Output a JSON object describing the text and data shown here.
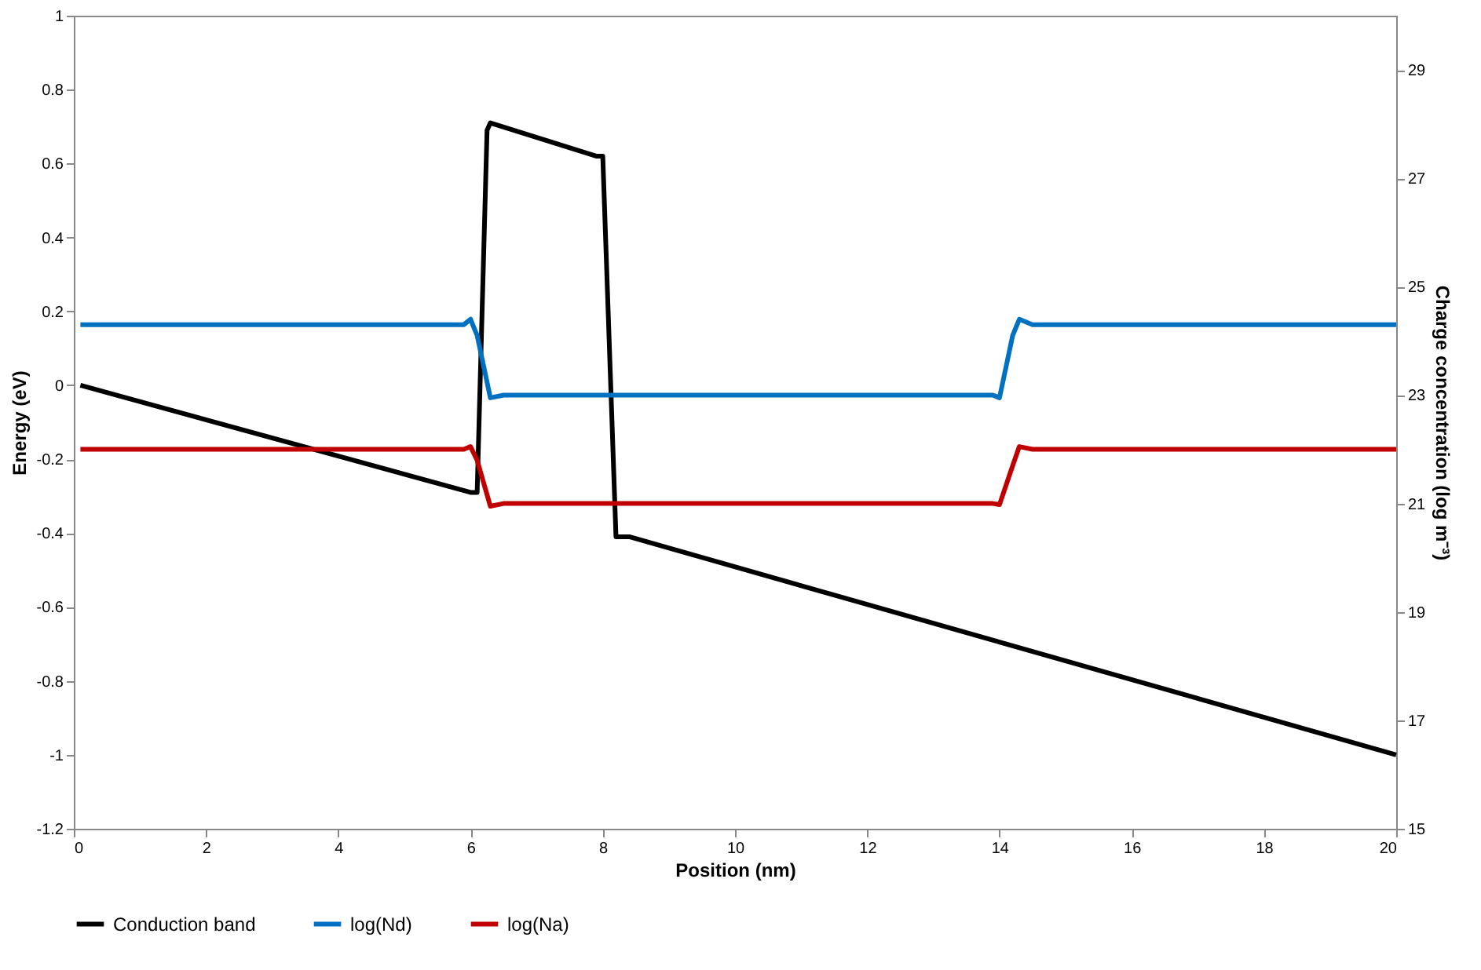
{
  "chart_data": {
    "type": "line",
    "xlabel": "Position (nm)",
    "ylabel": "Energy (eV)",
    "y2label": "Charge concentration (log m⁻³)",
    "xlim": [
      0,
      20
    ],
    "xticks": [
      0,
      2,
      4,
      6,
      8,
      10,
      12,
      14,
      16,
      18,
      20
    ],
    "ylim": [
      -1.2,
      1
    ],
    "yticks": [
      -1.2,
      -1,
      -0.8,
      -0.6,
      -0.4,
      -0.2,
      0,
      0.2,
      0.4,
      0.6,
      0.8,
      1
    ],
    "y2lim": [
      15,
      30
    ],
    "y2ticks": [
      15,
      17,
      19,
      21,
      23,
      25,
      27,
      29
    ],
    "legend": "bottom",
    "grid": false,
    "line_style": "solid",
    "marker": "none",
    "series": [
      {
        "name": "Conduction band",
        "color": "#000000",
        "x": [
          0.1,
          6.0,
          6.1,
          6.25,
          6.3,
          7.9,
          8.0,
          8.2,
          8.4,
          20
        ],
        "values": [
          0.0,
          -0.29,
          -0.29,
          0.69,
          0.71,
          0.62,
          0.62,
          -0.41,
          -0.41,
          -1.0
        ]
      },
      {
        "name": "log(Nd)",
        "color": "#0070c0",
        "axis": "y2",
        "x": [
          0.1,
          5.9,
          6.0,
          6.1,
          6.3,
          6.5,
          13.9,
          14.0,
          14.2,
          14.3,
          14.5,
          20
        ],
        "values": [
          24.3,
          24.3,
          24.4,
          24.1,
          22.95,
          23.0,
          23.0,
          22.95,
          24.1,
          24.4,
          24.3,
          24.3
        ]
      },
      {
        "name": "log(Na)",
        "color": "#c00000",
        "axis": "y2",
        "x": [
          0.1,
          5.9,
          6.0,
          6.1,
          6.3,
          6.5,
          13.9,
          14.0,
          14.2,
          14.3,
          14.5,
          20
        ],
        "values": [
          22.0,
          22.0,
          22.05,
          21.8,
          20.95,
          21.0,
          21.0,
          20.98,
          21.7,
          22.05,
          22.0,
          22.0
        ]
      }
    ]
  }
}
